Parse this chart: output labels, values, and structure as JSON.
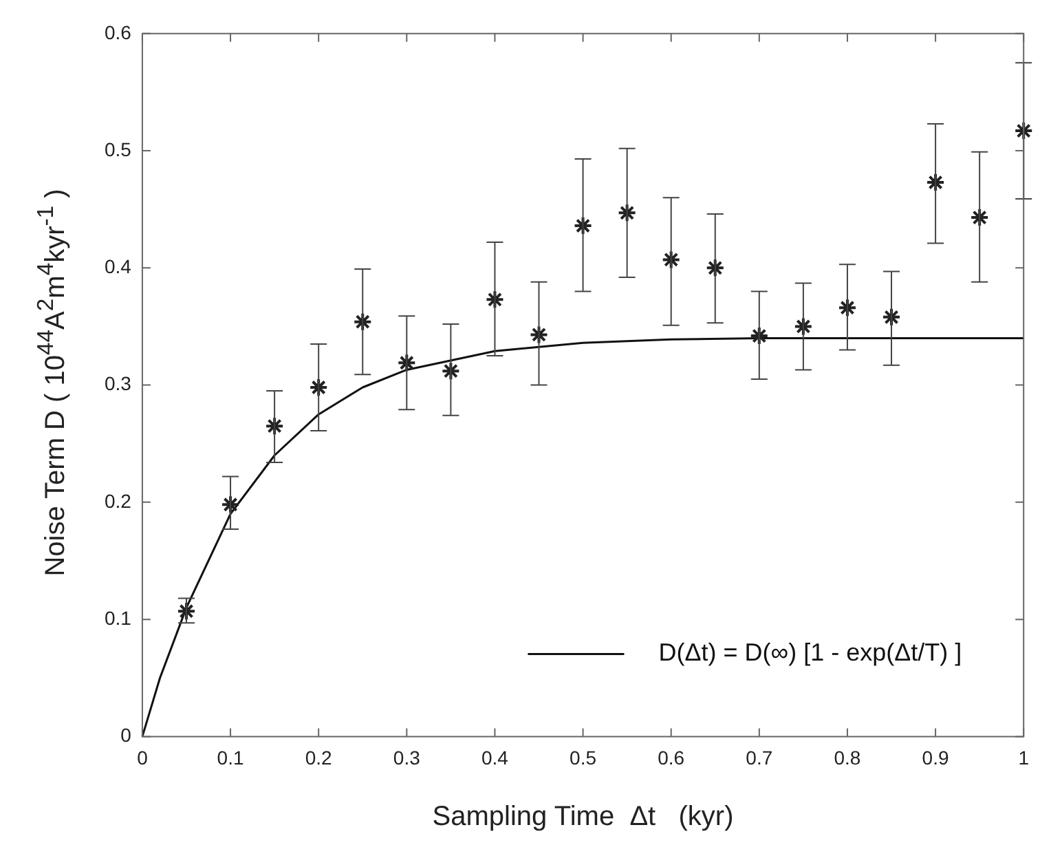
{
  "chart_data": {
    "type": "scatter",
    "xlabel": "Sampling Time  Δt   (kyr)",
    "ylabel": "Noise Term  D  ( 10$^{44}$A$^{2}$m$^{4}$kyr$^{-1}$ )",
    "xlim": [
      0,
      1
    ],
    "ylim": [
      0,
      0.6
    ],
    "xticks": [
      0,
      0.1,
      0.2,
      0.3,
      0.4,
      0.5,
      0.6,
      0.7,
      0.8,
      0.9,
      1
    ],
    "yticks": [
      0,
      0.1,
      0.2,
      0.3,
      0.4,
      0.5,
      0.6
    ],
    "marker": "cross",
    "legend": "bottom right",
    "grid": false,
    "series": [
      {
        "type": "scatter",
        "color": "#222222",
        "x": [
          0.05,
          0.1,
          0.15,
          0.2,
          0.25,
          0.3,
          0.35,
          0.4,
          0.45,
          0.5,
          0.55,
          0.6,
          0.65,
          0.7,
          0.75,
          0.8,
          0.85,
          0.9,
          0.95,
          1
        ],
        "values": [
          0.107,
          0.198,
          0.265,
          0.298,
          0.354,
          0.319,
          0.312,
          0.373,
          0.343,
          0.436,
          0.447,
          0.407,
          0.4,
          0.342,
          0.35,
          0.366,
          0.358,
          0.473,
          0.443,
          0.517
        ],
        "errors": [
          [
            0.097,
            0.118
          ],
          [
            0.177,
            0.222
          ],
          [
            0.234,
            0.295
          ],
          [
            0.261,
            0.335
          ],
          [
            0.309,
            0.399
          ],
          [
            0.279,
            0.359
          ],
          [
            0.274,
            0.352
          ],
          [
            0.325,
            0.422
          ],
          [
            0.3,
            0.388
          ],
          [
            0.38,
            0.493
          ],
          [
            0.392,
            0.502
          ],
          [
            0.351,
            0.46
          ],
          [
            0.353,
            0.446
          ],
          [
            0.305,
            0.38
          ],
          [
            0.313,
            0.387
          ],
          [
            0.33,
            0.403
          ],
          [
            0.317,
            0.397
          ],
          [
            0.421,
            0.523
          ],
          [
            0.388,
            0.499
          ],
          [
            0.459,
            0.575
          ]
        ]
      },
      {
        "type": "line",
        "name": "D(Δt) = D(∞) [1 - exp(Δt/T) ]",
        "color": "#111111",
        "marker": "none",
        "line_style": "solid",
        "x": [
          0,
          0.02,
          0.05,
          0.1,
          0.15,
          0.2,
          0.25,
          0.3,
          0.4,
          0.5,
          0.6,
          0.7,
          0.8,
          1
        ],
        "values": [
          0,
          0.05,
          0.11,
          0.19,
          0.24,
          0.275,
          0.298,
          0.313,
          0.329,
          0.336,
          0.339,
          0.34,
          0.34,
          0.34
        ]
      }
    ]
  }
}
